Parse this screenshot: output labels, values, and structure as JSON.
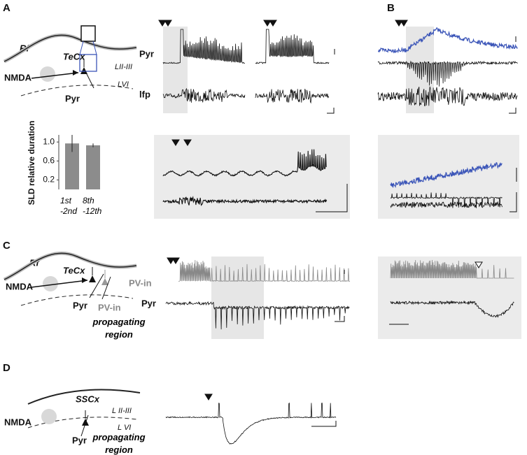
{
  "panels": {
    "a": "A",
    "b": "B",
    "c": "C",
    "d": "D"
  },
  "panel_a": {
    "rf": "Rf",
    "tecx": "TeCx",
    "layer_upper": "LII-III",
    "layer_lower": "LVI",
    "nmda": "NMDA",
    "pyr": "Pyr",
    "trace_pyr": "Pyr",
    "trace_lfp": "lfp"
  },
  "panel_c": {
    "rf": "Rf",
    "tecx": "TeCx",
    "nmda": "NMDA",
    "pyr": "Pyr",
    "pv_in": "PV-in",
    "region": "propagating region",
    "trace_pv_in": "PV-in",
    "trace_pyr": "Pyr"
  },
  "panel_d": {
    "sscx": "SSCx",
    "layer_upper": "L II-III",
    "layer_lower": "L VI",
    "nmda": "NMDA",
    "pyr": "Pyr",
    "region": "propagating region"
  },
  "chart_data": {
    "type": "bar",
    "y_label": "SLD relative duration",
    "categories": [
      "1st -2nd",
      "8th -12th"
    ],
    "values": [
      0.97,
      0.93
    ],
    "errors": [
      0.18,
      0.04
    ],
    "color": "#8c8c8c",
    "ylim": [
      0,
      1.15
    ],
    "yticks": [
      0.2,
      0.6,
      {
        "value": 1,
        "label": "1.0"
      }
    ]
  }
}
